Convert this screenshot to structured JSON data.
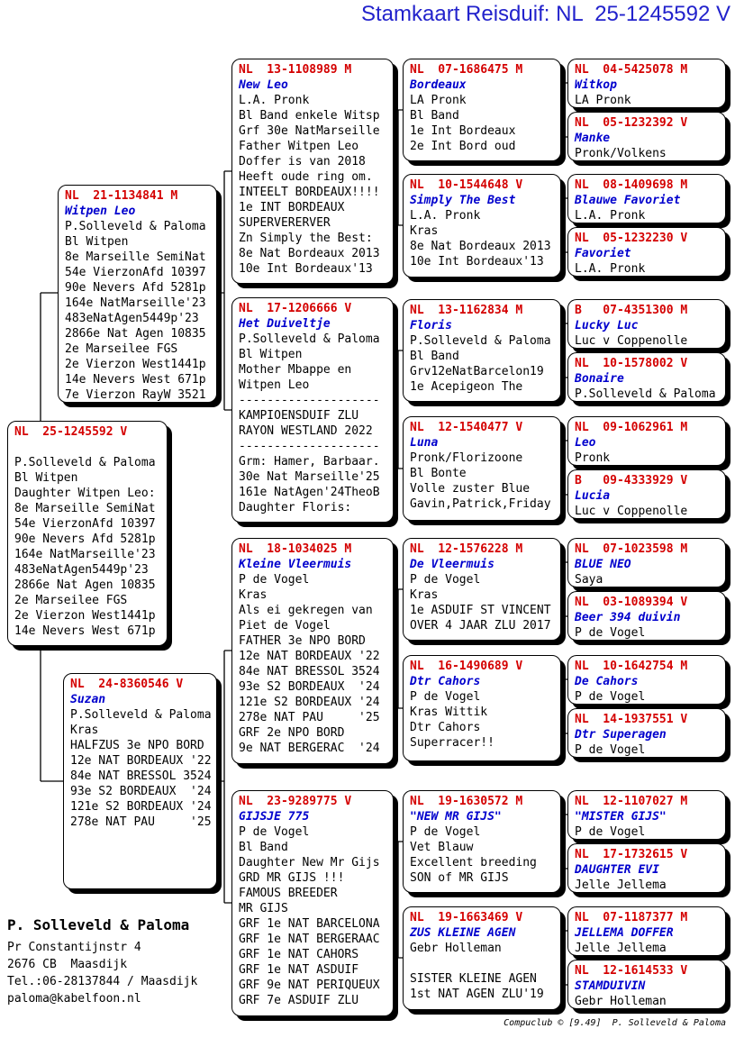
{
  "title": "Stamkaart Reisduif: NL  25-1245592 V",
  "colors": {
    "ring_number": "#d40000",
    "bird_name": "#0000cd",
    "title": "#2222cc",
    "body_text": "#000000"
  },
  "pedigree": {
    "subject": {
      "ring": "NL  25-1245592 V",
      "name": "",
      "lines": [
        "P.Solleveld & Paloma",
        "Bl Witpen",
        "Daughter Witpen Leo:",
        "8e Marseille SemiNat",
        "54e VierzonAfd 10397",
        "90e Nevers Afd 5281p",
        "164e NatMarseille'23",
        "483eNatAgen5449p'23",
        "2866e Nat Agen 10835",
        "2e Marseilee FGS",
        "2e Vierzon West1441p",
        "14e Nevers West 671p"
      ]
    },
    "gen1": [
      {
        "ring": "NL  21-1134841 M",
        "name": "Witpen Leo",
        "lines": [
          "P.Solleveld & Paloma",
          "Bl Witpen",
          "8e Marseille SemiNat",
          "54e VierzonAfd 10397",
          "90e Nevers Afd 5281p",
          "164e NatMarseille'23",
          "483eNatAgen5449p'23",
          "2866e Nat Agen 10835",
          "2e Marseilee FGS",
          "2e Vierzon West1441p",
          "14e Nevers West 671p",
          "7e Vierzon RayW 3521"
        ]
      },
      {
        "ring": "NL  24-8360546 V",
        "name": "Suzan",
        "lines": [
          "P.Solleveld & Paloma",
          "Kras",
          "HALFZUS 3e NPO BORD",
          "12e NAT BORDEAUX '22",
          "84e NAT BRESSOL 3524",
          "93e S2 BORDEAUX  '24",
          "121e S2 BORDEAUX '24",
          "278e NAT PAU     '25"
        ]
      }
    ],
    "gen2": [
      {
        "ring": "NL  13-1108989 M",
        "name": "New Leo",
        "lines": [
          "L.A. Pronk",
          "Bl Band enkele Witsp",
          "Grf 30e NatMarseille",
          "Father Witpen Leo",
          "Doffer is van 2018",
          "Heeft oude ring om.",
          "INTEELT BORDEAUX!!!!",
          "1e INT BORDEAUX",
          "SUPERVERERVER",
          "Zn Simply the Best:",
          "8e Nat Bordeaux 2013",
          "10e Int Bordeaux'13"
        ]
      },
      {
        "ring": "NL  17-1206666 V",
        "name": "Het Duiveltje",
        "lines": [
          "P.Solleveld & Paloma",
          "Bl Witpen",
          "Mother Mbappe en",
          "Witpen Leo",
          "--------------------",
          "KAMPIOENSDUIF ZLU",
          "RAYON WESTLAND 2022",
          "--------------------",
          "Grm: Hamer, Barbaar.",
          "30e Nat Marseille'25",
          "161e NatAgen'24TheoB",
          "Daughter Floris:"
        ]
      },
      {
        "ring": "NL  18-1034025 M",
        "name": "Kleine Vleermuis",
        "lines": [
          "P de Vogel",
          "Kras",
          "Als ei gekregen van",
          "Piet de Vogel",
          "FATHER 3e NPO BORD",
          "12e NAT BORDEAUX '22",
          "84e NAT BRESSOL 3524",
          "93e S2 BORDEAUX  '24",
          "121e S2 BORDEAUX '24",
          "278e NAT PAU     '25",
          "GRF 2e NPO BORD",
          "9e NAT BERGERAC  '24"
        ]
      },
      {
        "ring": "NL  23-9289775 V",
        "name": "GIJSJE 775",
        "lines": [
          "P de Vogel",
          "Bl Band",
          "Daughter New Mr Gijs",
          "GRD MR GIJS !!!",
          "FAMOUS BREEDER",
          "MR GIJS",
          "GRF 1e NAT BARCELONA",
          "GRF 1e NAT BERGERAAC",
          "GRF 1e NAT CAHORS",
          "GRF 1e NAT ASDUIF",
          "GRF 9e NAT PERIQUEUX",
          "GRF 7e ASDUIF ZLU"
        ]
      }
    ],
    "gen3": [
      {
        "ring": "NL  07-1686475 M",
        "name": "Bordeaux",
        "lines": [
          "LA Pronk",
          "Bl Band",
          "1e Int Bordeaux",
          "2e Int Bord oud"
        ]
      },
      {
        "ring": "NL  10-1544648 V",
        "name": "Simply The Best",
        "lines": [
          "L.A. Pronk",
          "Kras",
          "8e Nat Bordeaux 2013",
          "10e Int Bordeaux'13"
        ]
      },
      {
        "ring": "NL  13-1162834 M",
        "name": "Floris",
        "lines": [
          "P.Solleveld & Paloma",
          "Bl Band",
          "Grv12eNatBarcelon19",
          "1e Acepigeon The"
        ]
      },
      {
        "ring": "NL  12-1540477 V",
        "name": "Luna",
        "lines": [
          "Pronk/Florizoone",
          "Bl Bonte",
          "Volle zuster Blue",
          "Gavin,Patrick,Friday"
        ]
      },
      {
        "ring": "NL  12-1576228 M",
        "name": "De Vleermuis",
        "lines": [
          "P de Vogel",
          "Kras",
          "1e ASDUIF ST VINCENT",
          "OVER 4 JAAR ZLU 2017"
        ]
      },
      {
        "ring": "NL  16-1490689 V",
        "name": "Dtr Cahors",
        "lines": [
          "P de Vogel",
          "Kras Wittik",
          "Dtr Cahors",
          "Superracer!!"
        ]
      },
      {
        "ring": "NL  19-1630572 M",
        "name": "\"NEW MR GIJS\"",
        "lines": [
          "P de Vogel",
          "Vet Blauw",
          "Excellent breeding",
          "SON of MR GIJS"
        ]
      },
      {
        "ring": "NL  19-1663469 V",
        "name": "ZUS KLEINE AGEN",
        "lines": [
          "Gebr Holleman",
          "",
          "SISTER KLEINE AGEN",
          "1st NAT AGEN ZLU'19"
        ]
      }
    ],
    "gen4": [
      {
        "ring": "NL  04-5425078 M",
        "name": "Witkop",
        "lines": [
          "LA Pronk"
        ]
      },
      {
        "ring": "NL  05-1232392 V",
        "name": "Manke",
        "lines": [
          "Pronk/Volkens"
        ]
      },
      {
        "ring": "NL  08-1409698 M",
        "name": "Blauwe Favoriet",
        "lines": [
          "L.A. Pronk"
        ]
      },
      {
        "ring": "NL  05-1232230 V",
        "name": "Favoriet",
        "lines": [
          "L.A. Pronk"
        ]
      },
      {
        "ring": "B   07-4351300 M",
        "name": "Lucky Luc",
        "lines": [
          "Luc v Coppenolle"
        ]
      },
      {
        "ring": "NL  10-1578002 V",
        "name": "Bonaire",
        "lines": [
          "P.Solleveld & Paloma"
        ]
      },
      {
        "ring": "NL  09-1062961 M",
        "name": "Leo",
        "lines": [
          "Pronk"
        ]
      },
      {
        "ring": "B   09-4333929 V",
        "name": "Lucia",
        "lines": [
          "Luc v Coppenolle"
        ]
      },
      {
        "ring": "NL  07-1023598 M",
        "name": "BLUE NEO",
        "lines": [
          "Saya"
        ]
      },
      {
        "ring": "NL  03-1089394 V",
        "name": "Beer 394 duivin",
        "lines": [
          "P de Vogel"
        ]
      },
      {
        "ring": "NL  10-1642754 M",
        "name": "De Cahors",
        "lines": [
          "P de Vogel"
        ]
      },
      {
        "ring": "NL  14-1937551 V",
        "name": "Dtr Superagen",
        "lines": [
          "P de Vogel"
        ]
      },
      {
        "ring": "NL  12-1107027 M",
        "name": "\"MISTER GIJS\"",
        "lines": [
          "P de Vogel"
        ]
      },
      {
        "ring": "NL  17-1732615 V",
        "name": "DAUGHTER EVI",
        "lines": [
          "Jelle Jellema"
        ]
      },
      {
        "ring": "NL  07-1187377 M",
        "name": "JELLEMA DOFFER",
        "lines": [
          "Jelle Jellema"
        ]
      },
      {
        "ring": "NL  12-1614533 V",
        "name": "STAMDUIVIN",
        "lines": [
          "Gebr Holleman"
        ]
      }
    ]
  },
  "owner": {
    "name": "P. Solleveld & Paloma",
    "lines": [
      "Pr Constantijnstr 4",
      "2676 CB  Maasdijk",
      "Tel.:06-28137844 / Maasdijk",
      "paloma@kabelfoon.nl"
    ]
  },
  "footer": {
    "credit": "Compuclub © [9.49]  P. Solleveld & Paloma"
  }
}
